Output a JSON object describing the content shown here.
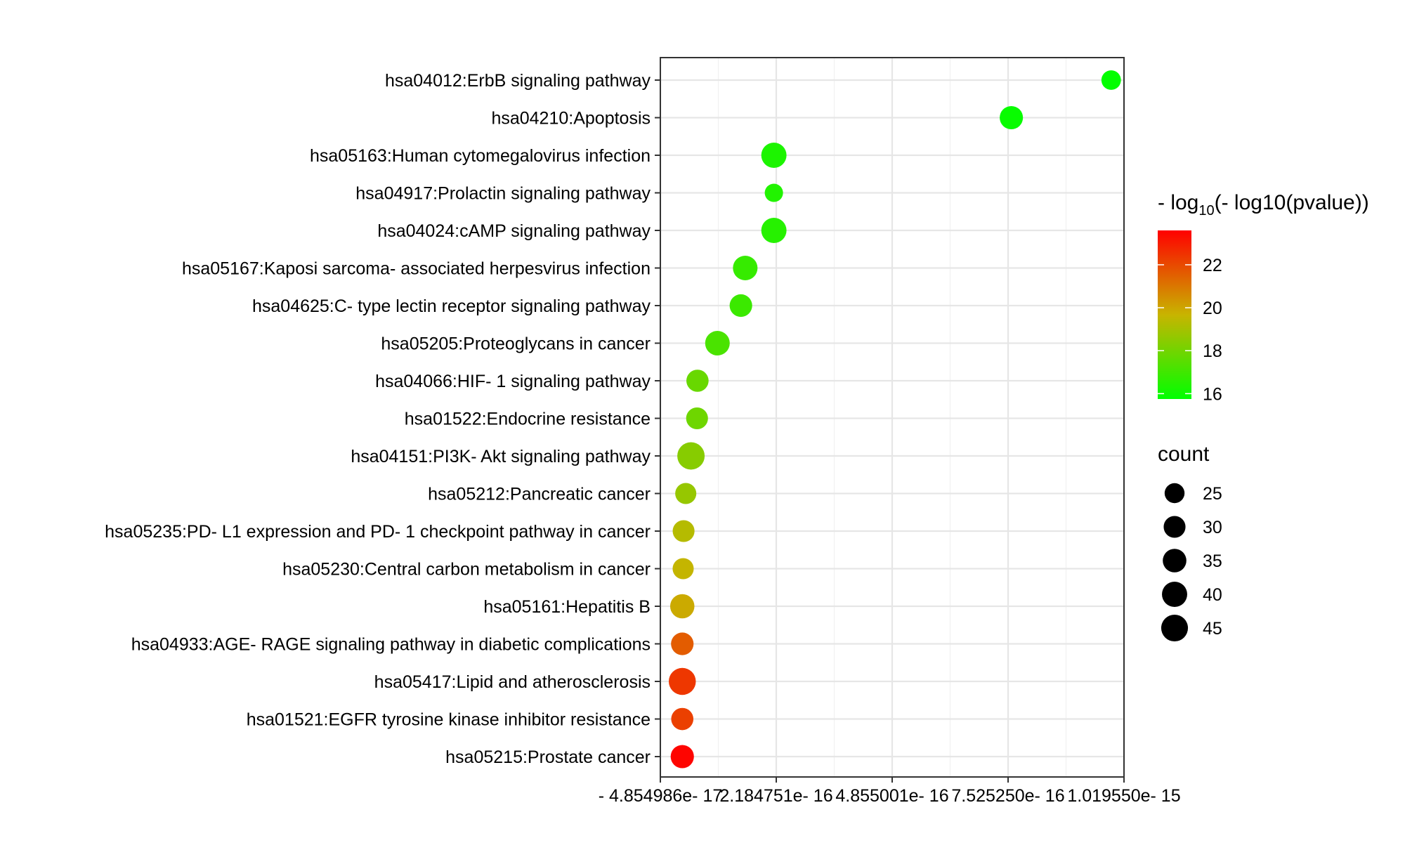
{
  "chart_data": {
    "type": "scatter",
    "x_tick_labels": [
      "- 4.854986e- 17",
      "2.184751e- 16",
      "4.855001e- 16",
      "7.525250e- 16",
      "1.019550e- 15"
    ],
    "x_ticks": [
      -4.854986e-17,
      2.184751e-16,
      4.855001e-16,
      7.52525e-16,
      1.01955e-15
    ],
    "xlim": [
      -4.854986e-17,
      1.01955e-15
    ],
    "grid": true,
    "categories": [
      "hsa04012:ErbB signaling pathway",
      "hsa04210:Apoptosis",
      "hsa05163:Human cytomegalovirus infection",
      "hsa04917:Prolactin signaling pathway",
      "hsa04024:cAMP signaling pathway",
      "hsa05167:Kaposi sarcoma- associated herpesvirus infection",
      "hsa04625:C- type lectin receptor signaling pathway",
      "hsa05205:Proteoglycans in cancer",
      "hsa04066:HIF- 1 signaling pathway",
      "hsa01522:Endocrine resistance",
      "hsa04151:PI3K- Akt signaling pathway",
      "hsa05212:Pancreatic cancer",
      "hsa05235:PD- L1 expression and PD- 1 checkpoint pathway in cancer",
      "hsa05230:Central carbon metabolism in cancer",
      "hsa05161:Hepatitis B",
      "hsa04933:AGE- RAGE signaling pathway in diabetic complications",
      "hsa05417:Lipid and atherosclerosis",
      "hsa01521:EGFR tyrosine kinase inhibitor resistance",
      "hsa05215:Prostate cancer"
    ],
    "x_values": [
      9.9e-16,
      7.6e-16,
      2.13e-16,
      2.13e-16,
      2.13e-16,
      1.47e-16,
      1.37e-16,
      8.3e-17,
      3.7e-17,
      3.6e-17,
      2.2e-17,
      1e-17,
      5e-18,
      4e-18,
      2e-18,
      2e-18,
      2e-18,
      2e-18,
      2e-18
    ],
    "color_values": [
      15.8,
      15.9,
      16.3,
      16.4,
      16.5,
      16.8,
      16.9,
      17.2,
      17.8,
      17.9,
      18.4,
      18.7,
      19.3,
      19.6,
      19.9,
      21.6,
      22.4,
      22.2,
      23.5
    ],
    "count_values": [
      24,
      34,
      40,
      21,
      40,
      38,
      32,
      38,
      31,
      30,
      47,
      28,
      30,
      28,
      37,
      32,
      46,
      31,
      34
    ],
    "color_legend": {
      "title_prefix": "- log",
      "title_subscript": "10",
      "title_suffix": "(- log10(pvalue))",
      "ticks": [
        "16",
        "18",
        "20",
        "22"
      ],
      "tick_values": [
        16,
        18,
        20,
        22
      ],
      "range": [
        15.75,
        23.6
      ],
      "low_color": "#00ff00",
      "mid_color": "#c8b400",
      "high_color": "#ff0000"
    },
    "size_legend": {
      "title": "count",
      "values": [
        25,
        30,
        35,
        40,
        45
      ],
      "labels": [
        "25",
        "30",
        "35",
        "40",
        "45"
      ]
    }
  }
}
